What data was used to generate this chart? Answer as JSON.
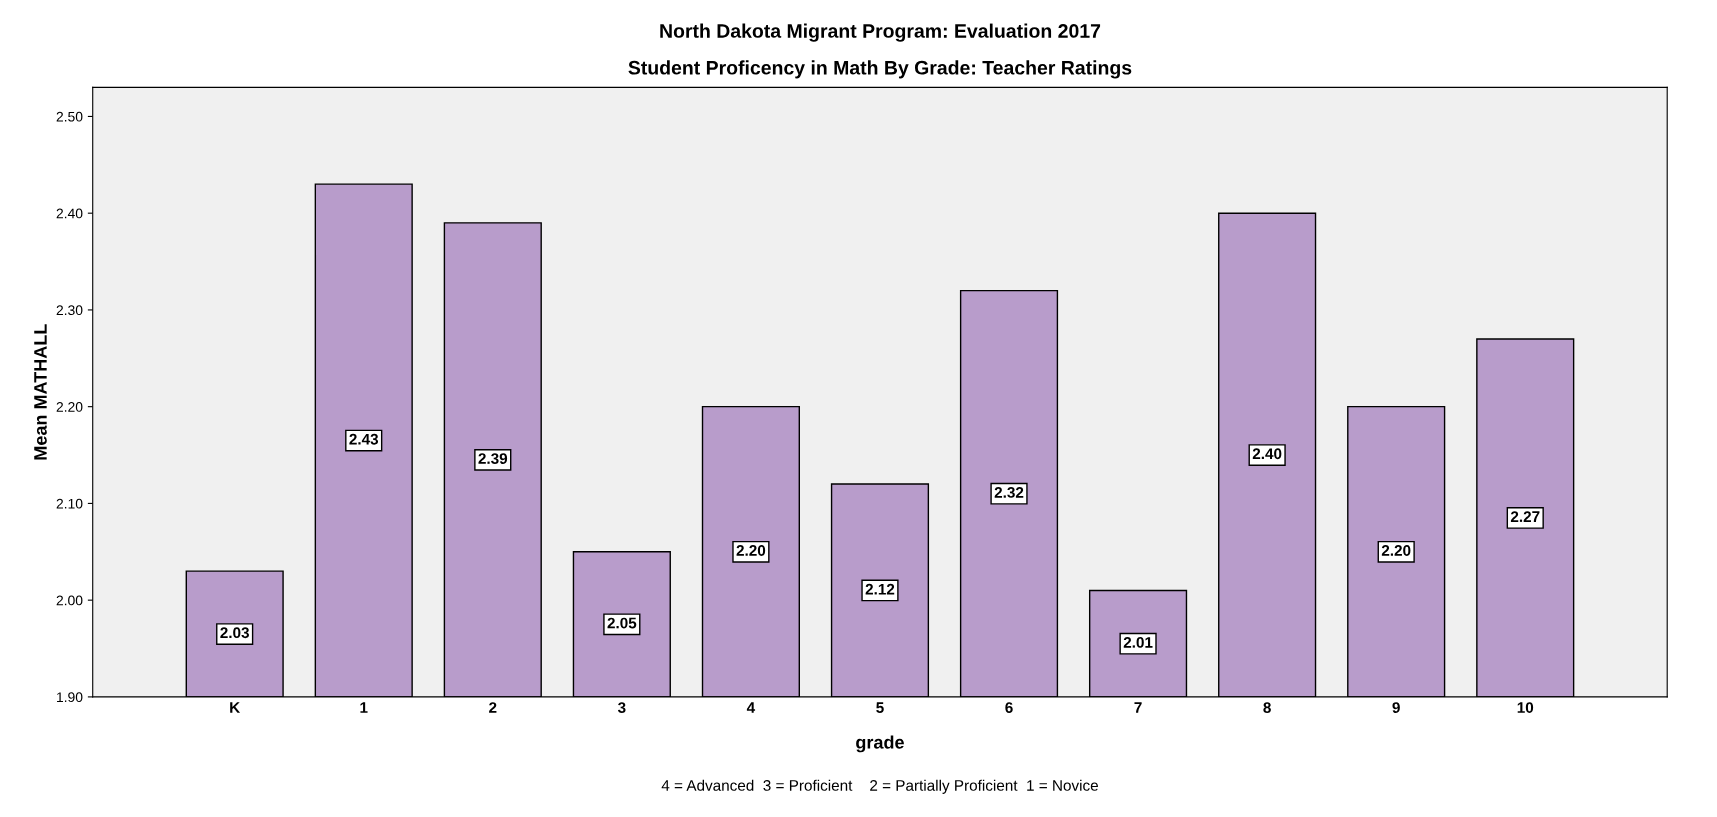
{
  "chart_data": {
    "type": "bar",
    "title": "North Dakota Migrant Program: Evaluation 2017",
    "subtitle": "Student Proficency in Math By Grade: Teacher Ratings",
    "xlabel": "grade",
    "ylabel": "Mean MATHALL",
    "categories": [
      "K",
      "1",
      "2",
      "3",
      "4",
      "5",
      "6",
      "7",
      "8",
      "9",
      "10"
    ],
    "values": [
      2.03,
      2.43,
      2.39,
      2.05,
      2.2,
      2.12,
      2.32,
      2.01,
      2.4,
      2.2,
      2.27
    ],
    "value_labels": [
      "2.03",
      "2.43",
      "2.39",
      "2.05",
      "2.20",
      "2.12",
      "2.32",
      "2.01",
      "2.40",
      "2.20",
      "2.27"
    ],
    "color": "#b89ccb",
    "ylim": [
      1.9,
      2.53
    ],
    "yticks": [
      {
        "value": 1.9,
        "label": "1.90"
      },
      {
        "value": 2.0,
        "label": "2.00"
      },
      {
        "value": 2.1,
        "label": "2.10"
      },
      {
        "value": 2.2,
        "label": "2.20"
      },
      {
        "value": 2.3,
        "label": "2.30"
      },
      {
        "value": 2.4,
        "label": "2.40"
      },
      {
        "value": 2.5,
        "label": "2.50"
      }
    ],
    "grid": false,
    "annotations": [
      "4 = Advanced  3 = Proficient    2 = Partially Proficient  1 = Novice"
    ]
  }
}
